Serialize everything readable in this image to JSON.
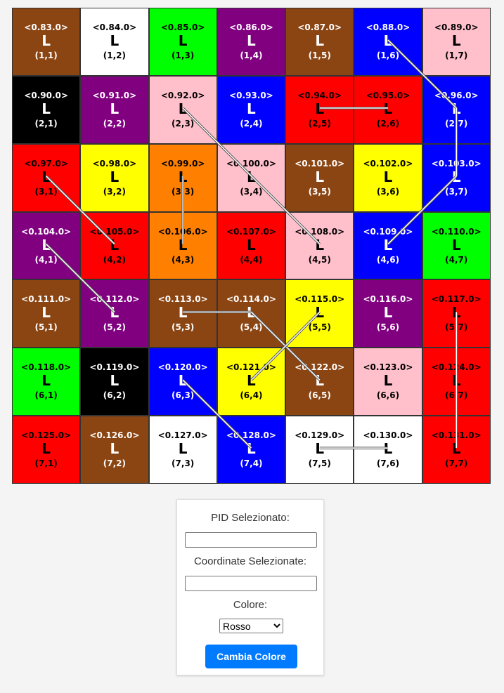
{
  "grid": {
    "rows": 7,
    "cols": 7,
    "cells": [
      {
        "row": 1,
        "col": 1,
        "pid": "<0.83.0>",
        "letter": "L",
        "coord": "(1,1)",
        "color": "#8b4513",
        "text_color": "#ffffff"
      },
      {
        "row": 1,
        "col": 2,
        "pid": "<0.84.0>",
        "letter": "L",
        "coord": "(1,2)",
        "color": "#ffffff",
        "text_color": "#000000"
      },
      {
        "row": 1,
        "col": 3,
        "pid": "<0.85.0>",
        "letter": "L",
        "coord": "(1,3)",
        "color": "#00ff00",
        "text_color": "#000000"
      },
      {
        "row": 1,
        "col": 4,
        "pid": "<0.86.0>",
        "letter": "L",
        "coord": "(1,4)",
        "color": "#800080",
        "text_color": "#ffffff"
      },
      {
        "row": 1,
        "col": 5,
        "pid": "<0.87.0>",
        "letter": "L",
        "coord": "(1,5)",
        "color": "#8b4513",
        "text_color": "#ffffff"
      },
      {
        "row": 1,
        "col": 6,
        "pid": "<0.88.0>",
        "letter": "L",
        "coord": "(1,6)",
        "color": "#0000ff",
        "text_color": "#ffffff"
      },
      {
        "row": 1,
        "col": 7,
        "pid": "<0.89.0>",
        "letter": "L",
        "coord": "(1,7)",
        "color": "#ffc0cb",
        "text_color": "#000000"
      },
      {
        "row": 2,
        "col": 1,
        "pid": "<0.90.0>",
        "letter": "L",
        "coord": "(2,1)",
        "color": "#000000",
        "text_color": "#ffffff"
      },
      {
        "row": 2,
        "col": 2,
        "pid": "<0.91.0>",
        "letter": "L",
        "coord": "(2,2)",
        "color": "#800080",
        "text_color": "#ffffff"
      },
      {
        "row": 2,
        "col": 3,
        "pid": "<0.92.0>",
        "letter": "L",
        "coord": "(2,3)",
        "color": "#ffc0cb",
        "text_color": "#000000"
      },
      {
        "row": 2,
        "col": 4,
        "pid": "<0.93.0>",
        "letter": "L",
        "coord": "(2,4)",
        "color": "#0000ff",
        "text_color": "#ffffff"
      },
      {
        "row": 2,
        "col": 5,
        "pid": "<0.94.0>",
        "letter": "L",
        "coord": "(2,5)",
        "color": "#ff0000",
        "text_color": "#000000"
      },
      {
        "row": 2,
        "col": 6,
        "pid": "<0.95.0>",
        "letter": "L",
        "coord": "(2,6)",
        "color": "#ff0000",
        "text_color": "#000000"
      },
      {
        "row": 2,
        "col": 7,
        "pid": "<0.96.0>",
        "letter": "L",
        "coord": "(2,7)",
        "color": "#0000ff",
        "text_color": "#ffffff"
      },
      {
        "row": 3,
        "col": 1,
        "pid": "<0.97.0>",
        "letter": "L",
        "coord": "(3,1)",
        "color": "#ff0000",
        "text_color": "#000000"
      },
      {
        "row": 3,
        "col": 2,
        "pid": "<0.98.0>",
        "letter": "L",
        "coord": "(3,2)",
        "color": "#ffff00",
        "text_color": "#000000"
      },
      {
        "row": 3,
        "col": 3,
        "pid": "<0.99.0>",
        "letter": "L",
        "coord": "(3,3)",
        "color": "#ff8000",
        "text_color": "#000000"
      },
      {
        "row": 3,
        "col": 4,
        "pid": "<0.100.0>",
        "letter": "L",
        "coord": "(3,4)",
        "color": "#ffc0cb",
        "text_color": "#000000"
      },
      {
        "row": 3,
        "col": 5,
        "pid": "<0.101.0>",
        "letter": "L",
        "coord": "(3,5)",
        "color": "#8b4513",
        "text_color": "#ffffff"
      },
      {
        "row": 3,
        "col": 6,
        "pid": "<0.102.0>",
        "letter": "L",
        "coord": "(3,6)",
        "color": "#ffff00",
        "text_color": "#000000"
      },
      {
        "row": 3,
        "col": 7,
        "pid": "<0.103.0>",
        "letter": "L",
        "coord": "(3,7)",
        "color": "#0000ff",
        "text_color": "#ffffff"
      },
      {
        "row": 4,
        "col": 1,
        "pid": "<0.104.0>",
        "letter": "L",
        "coord": "(4,1)",
        "color": "#800080",
        "text_color": "#ffffff"
      },
      {
        "row": 4,
        "col": 2,
        "pid": "<0.105.0>",
        "letter": "L",
        "coord": "(4,2)",
        "color": "#ff0000",
        "text_color": "#000000"
      },
      {
        "row": 4,
        "col": 3,
        "pid": "<0.106.0>",
        "letter": "L",
        "coord": "(4,3)",
        "color": "#ff8000",
        "text_color": "#000000"
      },
      {
        "row": 4,
        "col": 4,
        "pid": "<0.107.0>",
        "letter": "L",
        "coord": "(4,4)",
        "color": "#ff0000",
        "text_color": "#000000"
      },
      {
        "row": 4,
        "col": 5,
        "pid": "<0.108.0>",
        "letter": "L",
        "coord": "(4,5)",
        "color": "#ffc0cb",
        "text_color": "#000000"
      },
      {
        "row": 4,
        "col": 6,
        "pid": "<0.109.0>",
        "letter": "L",
        "coord": "(4,6)",
        "color": "#0000ff",
        "text_color": "#ffffff"
      },
      {
        "row": 4,
        "col": 7,
        "pid": "<0.110.0>",
        "letter": "L",
        "coord": "(4,7)",
        "color": "#00ff00",
        "text_color": "#000000"
      },
      {
        "row": 5,
        "col": 1,
        "pid": "<0.111.0>",
        "letter": "L",
        "coord": "(5,1)",
        "color": "#8b4513",
        "text_color": "#ffffff"
      },
      {
        "row": 5,
        "col": 2,
        "pid": "<0.112.0>",
        "letter": "L",
        "coord": "(5,2)",
        "color": "#800080",
        "text_color": "#ffffff"
      },
      {
        "row": 5,
        "col": 3,
        "pid": "<0.113.0>",
        "letter": "L",
        "coord": "(5,3)",
        "color": "#8b4513",
        "text_color": "#ffffff"
      },
      {
        "row": 5,
        "col": 4,
        "pid": "<0.114.0>",
        "letter": "L",
        "coord": "(5,4)",
        "color": "#8b4513",
        "text_color": "#ffffff"
      },
      {
        "row": 5,
        "col": 5,
        "pid": "<0.115.0>",
        "letter": "L",
        "coord": "(5,5)",
        "color": "#ffff00",
        "text_color": "#000000"
      },
      {
        "row": 5,
        "col": 6,
        "pid": "<0.116.0>",
        "letter": "L",
        "coord": "(5,6)",
        "color": "#800080",
        "text_color": "#ffffff"
      },
      {
        "row": 5,
        "col": 7,
        "pid": "<0.117.0>",
        "letter": "L",
        "coord": "(5,7)",
        "color": "#ff0000",
        "text_color": "#000000"
      },
      {
        "row": 6,
        "col": 1,
        "pid": "<0.118.0>",
        "letter": "L",
        "coord": "(6,1)",
        "color": "#00ff00",
        "text_color": "#000000"
      },
      {
        "row": 6,
        "col": 2,
        "pid": "<0.119.0>",
        "letter": "L",
        "coord": "(6,2)",
        "color": "#000000",
        "text_color": "#ffffff"
      },
      {
        "row": 6,
        "col": 3,
        "pid": "<0.120.0>",
        "letter": "L",
        "coord": "(6,3)",
        "color": "#0000ff",
        "text_color": "#ffffff"
      },
      {
        "row": 6,
        "col": 4,
        "pid": "<0.121.0>",
        "letter": "L",
        "coord": "(6,4)",
        "color": "#ffff00",
        "text_color": "#000000"
      },
      {
        "row": 6,
        "col": 5,
        "pid": "<0.122.0>",
        "letter": "L",
        "coord": "(6,5)",
        "color": "#8b4513",
        "text_color": "#ffffff"
      },
      {
        "row": 6,
        "col": 6,
        "pid": "<0.123.0>",
        "letter": "L",
        "coord": "(6,6)",
        "color": "#ffc0cb",
        "text_color": "#000000"
      },
      {
        "row": 6,
        "col": 7,
        "pid": "<0.124.0>",
        "letter": "L",
        "coord": "(6,7)",
        "color": "#ff0000",
        "text_color": "#000000"
      },
      {
        "row": 7,
        "col": 1,
        "pid": "<0.125.0>",
        "letter": "L",
        "coord": "(7,1)",
        "color": "#ff0000",
        "text_color": "#000000"
      },
      {
        "row": 7,
        "col": 2,
        "pid": "<0.126.0>",
        "letter": "L",
        "coord": "(7,2)",
        "color": "#8b4513",
        "text_color": "#ffffff"
      },
      {
        "row": 7,
        "col": 3,
        "pid": "<0.127.0>",
        "letter": "L",
        "coord": "(7,3)",
        "color": "#ffffff",
        "text_color": "#000000"
      },
      {
        "row": 7,
        "col": 4,
        "pid": "<0.128.0>",
        "letter": "L",
        "coord": "(7,4)",
        "color": "#0000ff",
        "text_color": "#ffffff"
      },
      {
        "row": 7,
        "col": 5,
        "pid": "<0.129.0>",
        "letter": "L",
        "coord": "(7,5)",
        "color": "#ffffff",
        "text_color": "#000000"
      },
      {
        "row": 7,
        "col": 6,
        "pid": "<0.130.0>",
        "letter": "L",
        "coord": "(7,6)",
        "color": "#ffffff",
        "text_color": "#000000"
      },
      {
        "row": 7,
        "col": 7,
        "pid": "<0.131.0>",
        "letter": "L",
        "coord": "(7,7)",
        "color": "#ff0000",
        "text_color": "#000000"
      }
    ],
    "links": [
      {
        "from": [
          1,
          6
        ],
        "to": [
          2,
          7
        ]
      },
      {
        "from": [
          2,
          7
        ],
        "to": [
          3,
          7
        ]
      },
      {
        "from": [
          3,
          7
        ],
        "to": [
          4,
          6
        ]
      },
      {
        "from": [
          2,
          5
        ],
        "to": [
          2,
          6
        ]
      },
      {
        "from": [
          2,
          3
        ],
        "to": [
          4,
          5
        ]
      },
      {
        "from": [
          3,
          1
        ],
        "to": [
          4,
          2
        ]
      },
      {
        "from": [
          3,
          3
        ],
        "to": [
          4,
          3
        ]
      },
      {
        "from": [
          4,
          1
        ],
        "to": [
          5,
          2
        ]
      },
      {
        "from": [
          5,
          3
        ],
        "to": [
          5,
          4
        ]
      },
      {
        "from": [
          5,
          4
        ],
        "to": [
          6,
          5
        ]
      },
      {
        "from": [
          5,
          5
        ],
        "to": [
          6,
          4
        ]
      },
      {
        "from": [
          5,
          7
        ],
        "to": [
          7,
          7
        ]
      },
      {
        "from": [
          6,
          3
        ],
        "to": [
          7,
          4
        ]
      },
      {
        "from": [
          7,
          5
        ],
        "to": [
          7,
          6
        ]
      }
    ],
    "link_color": "#ffffff",
    "link_outline": "#555555"
  },
  "panel": {
    "pid_label": "PID Selezionato:",
    "pid_value": "",
    "coord_label": "Coordinate Selezionate:",
    "coord_value": "",
    "color_label": "Colore:",
    "color_options": [
      "Rosso"
    ],
    "color_selected": "Rosso",
    "button_label": "Cambia Colore",
    "button_color": "#007bff"
  }
}
